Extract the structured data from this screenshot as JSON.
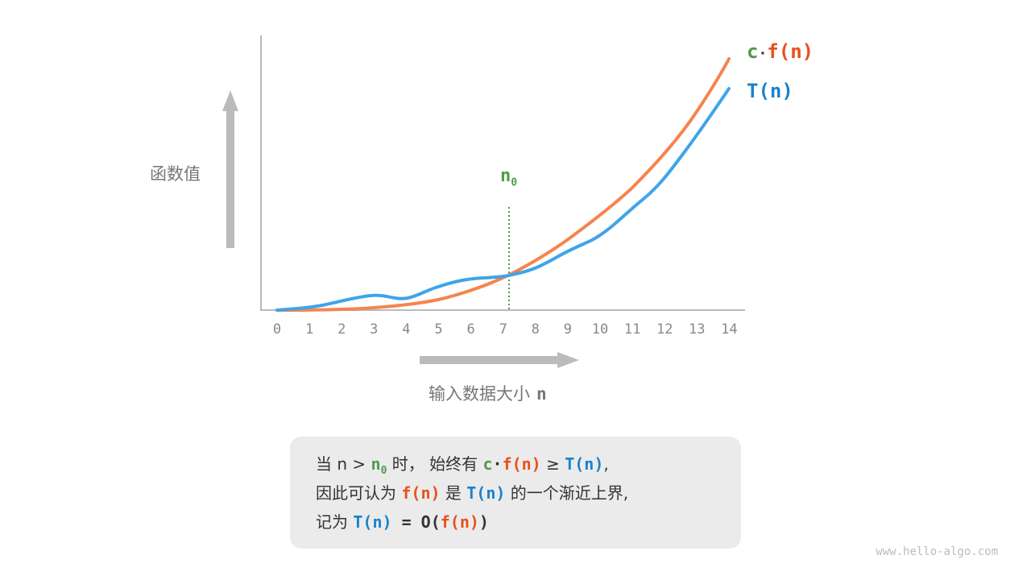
{
  "diagram": {
    "y_axis_label": "函数值",
    "x_axis_label": "输入数据大小",
    "x_axis_var": "n",
    "x_ticks": [
      "0",
      "1",
      "2",
      "3",
      "4",
      "5",
      "6",
      "7",
      "8",
      "9",
      "10",
      "11",
      "12",
      "13",
      "14"
    ],
    "n0_label": "n",
    "n0_sub": "0",
    "cf_label": {
      "c": "c",
      "dot": "·",
      "f": "f(n)"
    },
    "t_label": "T(n)",
    "colors": {
      "cf": "#f5844f",
      "t": "#3fa4ea",
      "n0": "#4f9a4f",
      "axis": "#bbbbbb"
    }
  },
  "caption": {
    "l1": {
      "a": "当 n > ",
      "n": "n",
      "sub": "0",
      "b": " 时， 始终有 ",
      "c": "c",
      "dot": "·",
      "f": "f(n)",
      "ge": " ≥ ",
      "t": "T(n)",
      "end": ","
    },
    "l2": {
      "a": "因此可认为 ",
      "f": "f(n)",
      "b": " 是 ",
      "t": "T(n)",
      "c": " 的一个渐近上界,"
    },
    "l3": {
      "a": "记为 ",
      "t": "T(n)",
      "eq": " = ",
      "o": "O(",
      "f": "f(n)",
      "close": ")"
    }
  },
  "watermark": "www.hello-algo.com"
}
